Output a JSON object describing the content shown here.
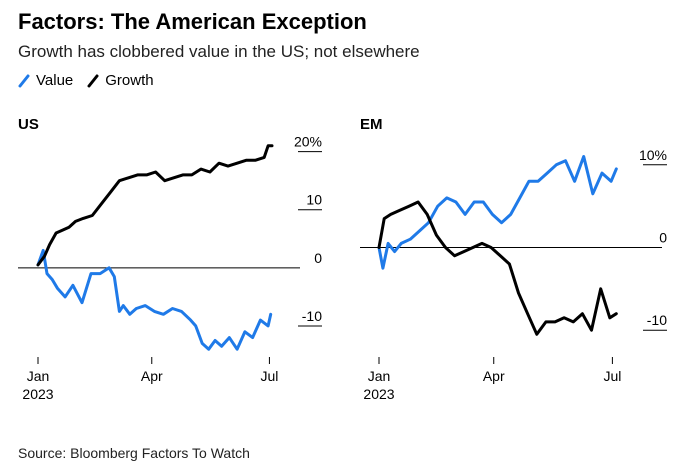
{
  "title": "Factors: The American Exception",
  "subtitle": "Growth has clobbered value in the US; not elsewhere",
  "legend": [
    {
      "label": "Value",
      "color": "#1f7ae8"
    },
    {
      "label": "Growth",
      "color": "#000000"
    }
  ],
  "source": "Source: Bloomberg Factors To Watch",
  "chart_data": [
    {
      "type": "line",
      "panel_title": "US",
      "x_ticks": [
        "Jan",
        "Apr",
        "Jul"
      ],
      "x_year_label": "2023",
      "y_ticks": [
        {
          "value": 20,
          "label": "20%"
        },
        {
          "value": 10,
          "label": "10"
        },
        {
          "value": 0,
          "label": "0"
        },
        {
          "value": -10,
          "label": "-10"
        }
      ],
      "ylim": [
        -15,
        22
      ],
      "x_range": [
        "2023-01-01",
        "2023-07-10"
      ],
      "series": [
        {
          "name": "Value",
          "color": "#1f7ae8",
          "x": [
            "2023-01-03",
            "2023-01-07",
            "2023-01-10",
            "2023-01-14",
            "2023-01-18",
            "2023-01-24",
            "2023-01-30",
            "2023-02-06",
            "2023-02-13",
            "2023-02-20",
            "2023-02-27",
            "2023-03-03",
            "2023-03-07",
            "2023-03-10",
            "2023-03-15",
            "2023-03-20",
            "2023-03-27",
            "2023-04-03",
            "2023-04-10",
            "2023-04-17",
            "2023-04-24",
            "2023-05-01",
            "2023-05-05",
            "2023-05-10",
            "2023-05-15",
            "2023-05-20",
            "2023-05-25",
            "2023-05-31",
            "2023-06-06",
            "2023-06-12",
            "2023-06-18",
            "2023-06-24",
            "2023-06-30",
            "2023-07-02"
          ],
          "y": [
            0.5,
            3,
            -1,
            -2,
            -3.5,
            -5,
            -3,
            -6,
            -1,
            -1,
            0,
            -1.5,
            -7.5,
            -6.5,
            -8,
            -7,
            -6.5,
            -7.5,
            -8,
            -7,
            -7.5,
            -9,
            -10,
            -13,
            -14,
            -12.5,
            -13.5,
            -12,
            -14,
            -11,
            -12,
            -9,
            -10,
            -8
          ]
        },
        {
          "name": "Growth",
          "color": "#000000",
          "x": [
            "2023-01-03",
            "2023-01-08",
            "2023-01-12",
            "2023-01-17",
            "2023-01-22",
            "2023-01-27",
            "2023-02-01",
            "2023-02-07",
            "2023-02-14",
            "2023-02-21",
            "2023-02-28",
            "2023-03-07",
            "2023-03-14",
            "2023-03-21",
            "2023-03-28",
            "2023-04-04",
            "2023-04-11",
            "2023-04-18",
            "2023-04-25",
            "2023-05-02",
            "2023-05-09",
            "2023-05-16",
            "2023-05-23",
            "2023-05-30",
            "2023-06-06",
            "2023-06-13",
            "2023-06-20",
            "2023-06-27",
            "2023-06-30",
            "2023-07-03"
          ],
          "y": [
            0.5,
            2,
            4,
            6,
            6.5,
            7,
            8,
            8.5,
            9,
            11,
            13,
            15,
            15.5,
            16,
            16,
            16.5,
            15,
            15.5,
            16,
            16,
            17,
            16.5,
            18,
            17.5,
            18,
            18.5,
            18.5,
            19,
            21,
            21
          ]
        }
      ]
    },
    {
      "type": "line",
      "panel_title": "EM",
      "x_ticks": [
        "Jan",
        "Apr",
        "Jul"
      ],
      "x_year_label": "2023",
      "y_ticks": [
        {
          "value": 10,
          "label": "10%"
        },
        {
          "value": 0,
          "label": "0"
        },
        {
          "value": -10,
          "label": "-10"
        }
      ],
      "ylim": [
        -13,
        13
      ],
      "x_range": [
        "2023-01-01",
        "2023-07-10"
      ],
      "series": [
        {
          "name": "Value",
          "color": "#1f7ae8",
          "x": [
            "2023-01-03",
            "2023-01-06",
            "2023-01-10",
            "2023-01-15",
            "2023-01-20",
            "2023-01-27",
            "2023-02-03",
            "2023-02-10",
            "2023-02-17",
            "2023-02-24",
            "2023-03-03",
            "2023-03-10",
            "2023-03-17",
            "2023-03-24",
            "2023-03-31",
            "2023-04-07",
            "2023-04-14",
            "2023-04-21",
            "2023-04-28",
            "2023-05-05",
            "2023-05-12",
            "2023-05-19",
            "2023-05-26",
            "2023-06-02",
            "2023-06-09",
            "2023-06-16",
            "2023-06-23",
            "2023-06-30",
            "2023-07-04"
          ],
          "y": [
            0,
            -2.5,
            0.5,
            -0.5,
            0.5,
            1,
            2,
            3,
            5,
            6,
            5.5,
            4,
            5.5,
            5.5,
            4,
            3,
            4,
            6,
            8,
            8,
            9,
            10,
            10.5,
            8,
            11,
            6.5,
            9,
            8,
            9.5
          ]
        },
        {
          "name": "Growth",
          "color": "#000000",
          "x": [
            "2023-01-03",
            "2023-01-07",
            "2023-01-12",
            "2023-01-19",
            "2023-01-26",
            "2023-02-02",
            "2023-02-09",
            "2023-02-16",
            "2023-02-23",
            "2023-03-02",
            "2023-03-09",
            "2023-03-16",
            "2023-03-23",
            "2023-03-30",
            "2023-04-06",
            "2023-04-13",
            "2023-04-20",
            "2023-04-27",
            "2023-05-04",
            "2023-05-11",
            "2023-05-18",
            "2023-05-25",
            "2023-06-01",
            "2023-06-08",
            "2023-06-15",
            "2023-06-22",
            "2023-06-29",
            "2023-07-04"
          ],
          "y": [
            0,
            3.5,
            4,
            4.5,
            5,
            5.5,
            4,
            1.5,
            0,
            -1,
            -0.5,
            0,
            0.5,
            0,
            -1,
            -2,
            -5.5,
            -8,
            -10.5,
            -9,
            -9,
            -8.5,
            -9,
            -8,
            -10,
            -5,
            -8.5,
            -8
          ]
        }
      ]
    }
  ]
}
